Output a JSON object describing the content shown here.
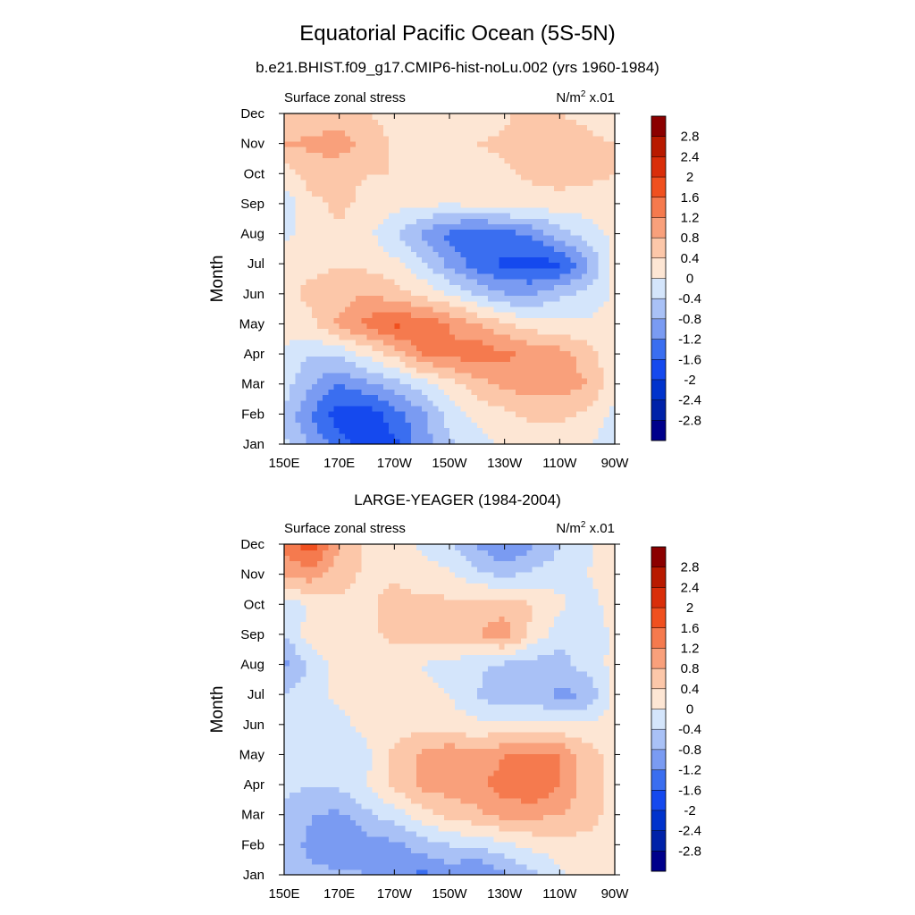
{
  "title": "Equatorial Pacific Ocean (5S-5N)",
  "chart_data": [
    {
      "type": "heatmap",
      "title": "b.e21.BHIST.f09_g17.CMIP6-hist-noLu.002 (yrs 1960-1984)",
      "left_label": "Surface zonal stress",
      "units_base": "N/m",
      "units_sup": "2",
      "units_scale": "x.01",
      "xlabel": "",
      "ylabel": "Month",
      "x_ticks": [
        "150E",
        "170E",
        "170W",
        "150W",
        "130W",
        "110W",
        "90W"
      ],
      "x_tick_lons": [
        150,
        170,
        190,
        210,
        230,
        250,
        270
      ],
      "y_ticks": [
        "Jan",
        "Feb",
        "Mar",
        "Apr",
        "May",
        "Jun",
        "Jul",
        "Aug",
        "Sep",
        "Oct",
        "Nov",
        "Dec"
      ],
      "xlim": [
        150,
        270
      ],
      "ylim": [
        1,
        12
      ],
      "grid_lon": [
        150,
        160,
        170,
        180,
        190,
        200,
        210,
        220,
        230,
        240,
        250,
        260,
        270
      ],
      "grid_month": [
        1,
        2,
        3,
        4,
        5,
        6,
        7,
        8,
        9,
        10,
        11,
        12
      ],
      "values": [
        [
          -0.3,
          -0.9,
          -1.4,
          -1.8,
          -1.7,
          -1.0,
          -0.5,
          -0.2,
          0.1,
          0.2,
          0.2,
          0.1,
          -0.3
        ],
        [
          -0.5,
          -1.2,
          -1.8,
          -1.9,
          -1.4,
          -0.9,
          -0.2,
          0.1,
          0.3,
          0.5,
          0.5,
          0.3,
          -0.1
        ],
        [
          -0.2,
          -0.8,
          -1.2,
          -0.9,
          -0.6,
          -0.2,
          0.2,
          0.6,
          0.9,
          1.0,
          1.0,
          0.8,
          0.1
        ],
        [
          -0.1,
          -0.4,
          -0.3,
          0.1,
          0.5,
          1.2,
          1.3,
          1.5,
          1.3,
          1.1,
          1.0,
          0.6,
          0.1
        ],
        [
          0.2,
          0.3,
          0.9,
          1.3,
          1.7,
          1.5,
          1.2,
          0.8,
          0.5,
          0.2,
          0.1,
          0.1,
          0.1
        ],
        [
          0.3,
          0.5,
          0.6,
          0.8,
          0.6,
          0.3,
          0.0,
          -0.4,
          -0.8,
          -0.8,
          -0.5,
          -0.3,
          0.1
        ],
        [
          0.2,
          0.3,
          0.4,
          0.3,
          0.1,
          -0.3,
          -0.9,
          -1.4,
          -1.7,
          -1.8,
          -1.7,
          -0.9,
          0.1
        ],
        [
          -0.1,
          0.2,
          0.3,
          0.1,
          -0.3,
          -0.9,
          -1.3,
          -1.6,
          -1.4,
          -1.1,
          -0.6,
          -0.2,
          0.1
        ],
        [
          -0.3,
          0.3,
          0.5,
          0.3,
          0.1,
          0.1,
          0.0,
          0.1,
          0.2,
          0.2,
          0.2,
          0.2,
          0.2
        ],
        [
          0.2,
          0.6,
          0.5,
          0.4,
          0.4,
          0.3,
          0.2,
          0.2,
          0.3,
          0.5,
          0.6,
          0.5,
          0.4
        ],
        [
          0.8,
          0.9,
          1.0,
          0.7,
          0.3,
          0.2,
          0.3,
          0.4,
          0.5,
          0.6,
          0.6,
          0.5,
          0.4
        ],
        [
          0.5,
          0.5,
          0.6,
          0.4,
          0.3,
          0.1,
          0.2,
          0.2,
          0.3,
          0.6,
          0.4,
          0.3,
          0.2
        ]
      ]
    },
    {
      "type": "heatmap",
      "title": "LARGE-YEAGER (1984-2004)",
      "left_label": "Surface zonal stress",
      "units_base": "N/m",
      "units_sup": "2",
      "units_scale": "x.01",
      "xlabel": "",
      "ylabel": "Month",
      "x_ticks": [
        "150E",
        "170E",
        "170W",
        "150W",
        "130W",
        "110W",
        "90W"
      ],
      "x_tick_lons": [
        150,
        170,
        190,
        210,
        230,
        250,
        270
      ],
      "y_ticks": [
        "Jan",
        "Feb",
        "Mar",
        "Apr",
        "May",
        "Jun",
        "Jul",
        "Aug",
        "Sep",
        "Oct",
        "Nov",
        "Dec"
      ],
      "xlim": [
        150,
        270
      ],
      "ylim": [
        1,
        12
      ],
      "grid_lon": [
        150,
        160,
        170,
        180,
        190,
        200,
        210,
        220,
        230,
        240,
        250,
        260,
        270
      ],
      "grid_month": [
        1,
        2,
        3,
        4,
        5,
        6,
        7,
        8,
        9,
        10,
        11,
        12
      ],
      "values": [
        [
          -0.5,
          -0.7,
          -0.7,
          -0.8,
          -1.1,
          -1.3,
          -1.1,
          -1.3,
          -0.9,
          -0.5,
          -0.1,
          0.2,
          0.3
        ],
        [
          -0.6,
          -0.9,
          -1.2,
          -1.0,
          -0.9,
          -0.6,
          -0.4,
          -0.3,
          -0.1,
          0.1,
          0.2,
          0.3,
          0.3
        ],
        [
          -0.5,
          -0.8,
          -0.9,
          -0.5,
          -0.2,
          0.2,
          0.5,
          0.7,
          0.9,
          0.9,
          0.8,
          0.5,
          0.3
        ],
        [
          -0.3,
          -0.4,
          -0.3,
          0.0,
          0.5,
          0.9,
          1.0,
          1.1,
          1.4,
          1.6,
          1.2,
          0.6,
          0.3
        ],
        [
          -0.3,
          -0.3,
          -0.4,
          -0.1,
          0.5,
          0.9,
          1.1,
          0.9,
          1.2,
          1.3,
          1.2,
          0.6,
          0.2
        ],
        [
          -0.3,
          -0.3,
          -0.1,
          0.1,
          0.2,
          0.3,
          0.2,
          0.1,
          0.1,
          0.1,
          0.1,
          0.1,
          0.1
        ],
        [
          -0.4,
          -0.2,
          0.1,
          0.2,
          0.2,
          0.1,
          0.0,
          -0.4,
          -0.7,
          -0.6,
          -0.9,
          -0.8,
          0.2
        ],
        [
          -0.9,
          -0.3,
          0.2,
          0.3,
          0.1,
          0.0,
          -0.2,
          -0.3,
          -0.5,
          -0.6,
          -0.6,
          -0.2,
          0.1
        ],
        [
          -0.4,
          0.2,
          0.3,
          0.3,
          0.5,
          0.6,
          0.7,
          0.8,
          1.0,
          0.3,
          -0.2,
          -0.3,
          0.1
        ],
        [
          -0.3,
          0.1,
          0.3,
          0.3,
          0.6,
          0.5,
          0.5,
          0.6,
          0.7,
          0.4,
          0.1,
          -0.2,
          0.2
        ],
        [
          0.9,
          1.0,
          0.6,
          0.3,
          0.3,
          0.2,
          0.1,
          -0.3,
          -0.5,
          -0.3,
          -0.2,
          0.0,
          0.3
        ],
        [
          1.4,
          1.8,
          0.8,
          0.3,
          0.2,
          -0.1,
          -0.4,
          -0.8,
          -1.3,
          -0.9,
          -0.4,
          -0.1,
          0.3
        ]
      ]
    }
  ],
  "colorbar": {
    "levels": [
      -2.8,
      -2.4,
      -2.0,
      -1.6,
      -1.2,
      -0.8,
      -0.4,
      0,
      0.4,
      0.8,
      1.2,
      1.6,
      2.0,
      2.4,
      2.8
    ],
    "labels": [
      "-2.8",
      "-2.4",
      "-2",
      "-1.6",
      "-1.2",
      "-0.8",
      "-0.4",
      "0",
      "0.4",
      "0.8",
      "1.2",
      "1.6",
      "2",
      "2.4",
      "2.8"
    ],
    "colors": [
      "#00008b",
      "#0022a8",
      "#0033cc",
      "#1549ee",
      "#3a6ef0",
      "#7a9bf2",
      "#a9c1f6",
      "#d4e5fb",
      "#fde6d4",
      "#fcc7a9",
      "#f9a07b",
      "#f57a4e",
      "#f0501f",
      "#d92e0a",
      "#b81a00",
      "#8b0000"
    ]
  }
}
